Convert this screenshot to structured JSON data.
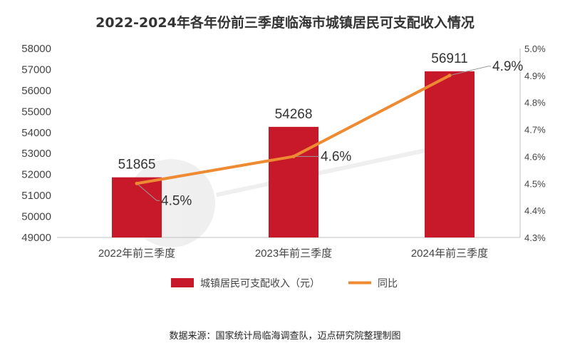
{
  "chart_data": {
    "type": "bar",
    "title": "2022-2024年各年份前三季度临海市城镇居民可支配收入情况",
    "categories": [
      "2022年前三季度",
      "2023年前三季度",
      "2024年前三季度"
    ],
    "series": [
      {
        "name": "城镇居民可支配收入（元）",
        "type": "bar",
        "axis": "left",
        "color": "#C8192B",
        "values": [
          51865,
          54268,
          56911
        ],
        "labels": [
          "51865",
          "54268",
          "56911"
        ]
      },
      {
        "name": "同比",
        "type": "line",
        "axis": "right",
        "color": "#EE8A32",
        "values": [
          4.5,
          4.6,
          4.9
        ],
        "labels": [
          "4.5%",
          "4.6%",
          "4.9%"
        ]
      }
    ],
    "y_left": {
      "min": 49000,
      "max": 58000,
      "ticks": [
        "49000",
        "50000",
        "51000",
        "52000",
        "53000",
        "54000",
        "55000",
        "56000",
        "57000",
        "58000"
      ]
    },
    "y_right": {
      "min": 4.3,
      "max": 5.0,
      "ticks": [
        "4.3%",
        "4.4%",
        "4.5%",
        "4.6%",
        "4.7%",
        "4.8%",
        "4.9%",
        "5.0%"
      ]
    },
    "legend_position": "bottom",
    "grid": false,
    "source": "数据来源：国家统计局临海调查队，迈点研究院整理制图"
  }
}
